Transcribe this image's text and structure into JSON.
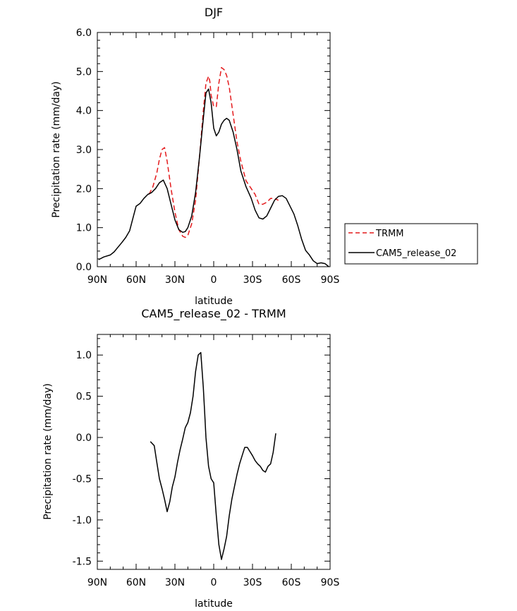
{
  "chart_data": [
    {
      "type": "line",
      "title": "DJF",
      "xlabel": "latitude",
      "ylabel": "Precipitation rate (mm/day)",
      "xlim": [
        -90,
        90
      ],
      "ylim": [
        0,
        6
      ],
      "x_ticks": [
        -90,
        -60,
        -30,
        0,
        30,
        60,
        90
      ],
      "x_tick_labels": [
        "90N",
        "60N",
        "30N",
        "0",
        "30S",
        "60S",
        "90S"
      ],
      "y_ticks": [
        0,
        1,
        2,
        3,
        4,
        5,
        6
      ],
      "y_tick_labels": [
        "0.0",
        "1.0",
        "2.0",
        "3.0",
        "4.0",
        "5.0",
        "6.0"
      ],
      "legend": [
        "TRMM",
        "CAM5_release_02"
      ],
      "legend_position": "right",
      "series": [
        {
          "name": "TRMM",
          "color": "#e41a1c",
          "style": "dashed",
          "x": [
            -50,
            -47,
            -44,
            -42,
            -40,
            -38,
            -36,
            -33,
            -30,
            -27,
            -24,
            -22,
            -20,
            -17,
            -14,
            -11,
            -8,
            -6,
            -4,
            -3,
            -2,
            0,
            2,
            4,
            6,
            8,
            10,
            12,
            15,
            18,
            21,
            25,
            29,
            32,
            35,
            38,
            41,
            44,
            47,
            50
          ],
          "y": [
            1.85,
            2.05,
            2.4,
            2.75,
            3.0,
            3.05,
            2.7,
            2.0,
            1.4,
            0.95,
            0.78,
            0.75,
            0.8,
            1.1,
            1.7,
            2.8,
            4.0,
            4.7,
            4.88,
            4.75,
            4.4,
            4.1,
            4.1,
            4.7,
            5.1,
            5.05,
            4.9,
            4.6,
            3.9,
            3.2,
            2.7,
            2.2,
            2.0,
            1.85,
            1.6,
            1.6,
            1.65,
            1.75,
            1.75,
            1.7
          ]
        },
        {
          "name": "CAM5_release_02",
          "color": "#000000",
          "style": "solid",
          "x": [
            -89,
            -85,
            -80,
            -77,
            -74,
            -71,
            -68,
            -65,
            -62,
            -60,
            -57,
            -54,
            -51,
            -48,
            -45,
            -42,
            -39,
            -36,
            -33,
            -30,
            -27,
            -24,
            -22,
            -20,
            -17,
            -14,
            -11,
            -8,
            -6,
            -4,
            -2,
            0,
            2,
            4,
            6,
            8,
            10,
            12,
            15,
            18,
            21,
            25,
            29,
            32,
            35,
            38,
            41,
            44,
            47,
            50,
            53,
            56,
            59,
            62,
            65,
            68,
            71,
            74,
            77,
            80,
            83,
            86,
            89
          ],
          "y": [
            0.18,
            0.25,
            0.3,
            0.38,
            0.5,
            0.62,
            0.75,
            0.92,
            1.3,
            1.55,
            1.62,
            1.75,
            1.85,
            1.9,
            2.0,
            2.15,
            2.22,
            2.0,
            1.6,
            1.2,
            0.95,
            0.88,
            0.9,
            1.0,
            1.3,
            1.9,
            2.8,
            3.8,
            4.45,
            4.55,
            4.2,
            3.55,
            3.35,
            3.45,
            3.65,
            3.75,
            3.8,
            3.75,
            3.45,
            3.0,
            2.45,
            2.05,
            1.75,
            1.45,
            1.25,
            1.22,
            1.3,
            1.5,
            1.7,
            1.8,
            1.82,
            1.75,
            1.55,
            1.35,
            1.05,
            0.7,
            0.42,
            0.3,
            0.15,
            0.08,
            0.1,
            0.08,
            0.0
          ]
        }
      ]
    },
    {
      "type": "line",
      "title": "CAM5_release_02 - TRMM",
      "xlabel": "latitude",
      "ylabel": "Precipitation rate (mm/day)",
      "xlim": [
        -90,
        90
      ],
      "ylim": [
        -1.6,
        1.25
      ],
      "x_ticks": [
        -90,
        -60,
        -30,
        0,
        30,
        60,
        90
      ],
      "x_tick_labels": [
        "90N",
        "60N",
        "30N",
        "0",
        "30S",
        "60S",
        "90S"
      ],
      "y_ticks": [
        -1.5,
        -1.0,
        -0.5,
        0.0,
        0.5,
        1.0
      ],
      "y_tick_labels": [
        "-1.5",
        "-1.0",
        "-0.5",
        "0.0",
        "0.5",
        "1.0"
      ],
      "series": [
        {
          "name": "CAM5_release_02 - TRMM",
          "color": "#000000",
          "style": "solid",
          "x": [
            -49,
            -46,
            -44,
            -42,
            -40,
            -38,
            -36,
            -34,
            -32,
            -30,
            -28,
            -26,
            -24,
            -22,
            -20,
            -18,
            -16,
            -14,
            -12,
            -10,
            -8,
            -7,
            -6,
            -4,
            -2,
            0,
            2,
            4,
            6,
            8,
            10,
            12,
            14,
            16,
            18,
            20,
            22,
            24,
            26,
            28,
            30,
            32,
            34,
            36,
            38,
            40,
            42,
            44,
            46,
            48
          ],
          "y": [
            -0.05,
            -0.1,
            -0.3,
            -0.5,
            -0.62,
            -0.75,
            -0.9,
            -0.78,
            -0.6,
            -0.48,
            -0.3,
            -0.15,
            -0.02,
            0.12,
            0.18,
            0.3,
            0.5,
            0.8,
            1.0,
            1.03,
            0.6,
            0.3,
            0.0,
            -0.35,
            -0.5,
            -0.55,
            -0.95,
            -1.3,
            -1.48,
            -1.35,
            -1.2,
            -0.95,
            -0.75,
            -0.6,
            -0.45,
            -0.32,
            -0.22,
            -0.12,
            -0.12,
            -0.17,
            -0.22,
            -0.28,
            -0.32,
            -0.35,
            -0.4,
            -0.42,
            -0.35,
            -0.32,
            -0.18,
            0.05
          ]
        }
      ]
    }
  ]
}
